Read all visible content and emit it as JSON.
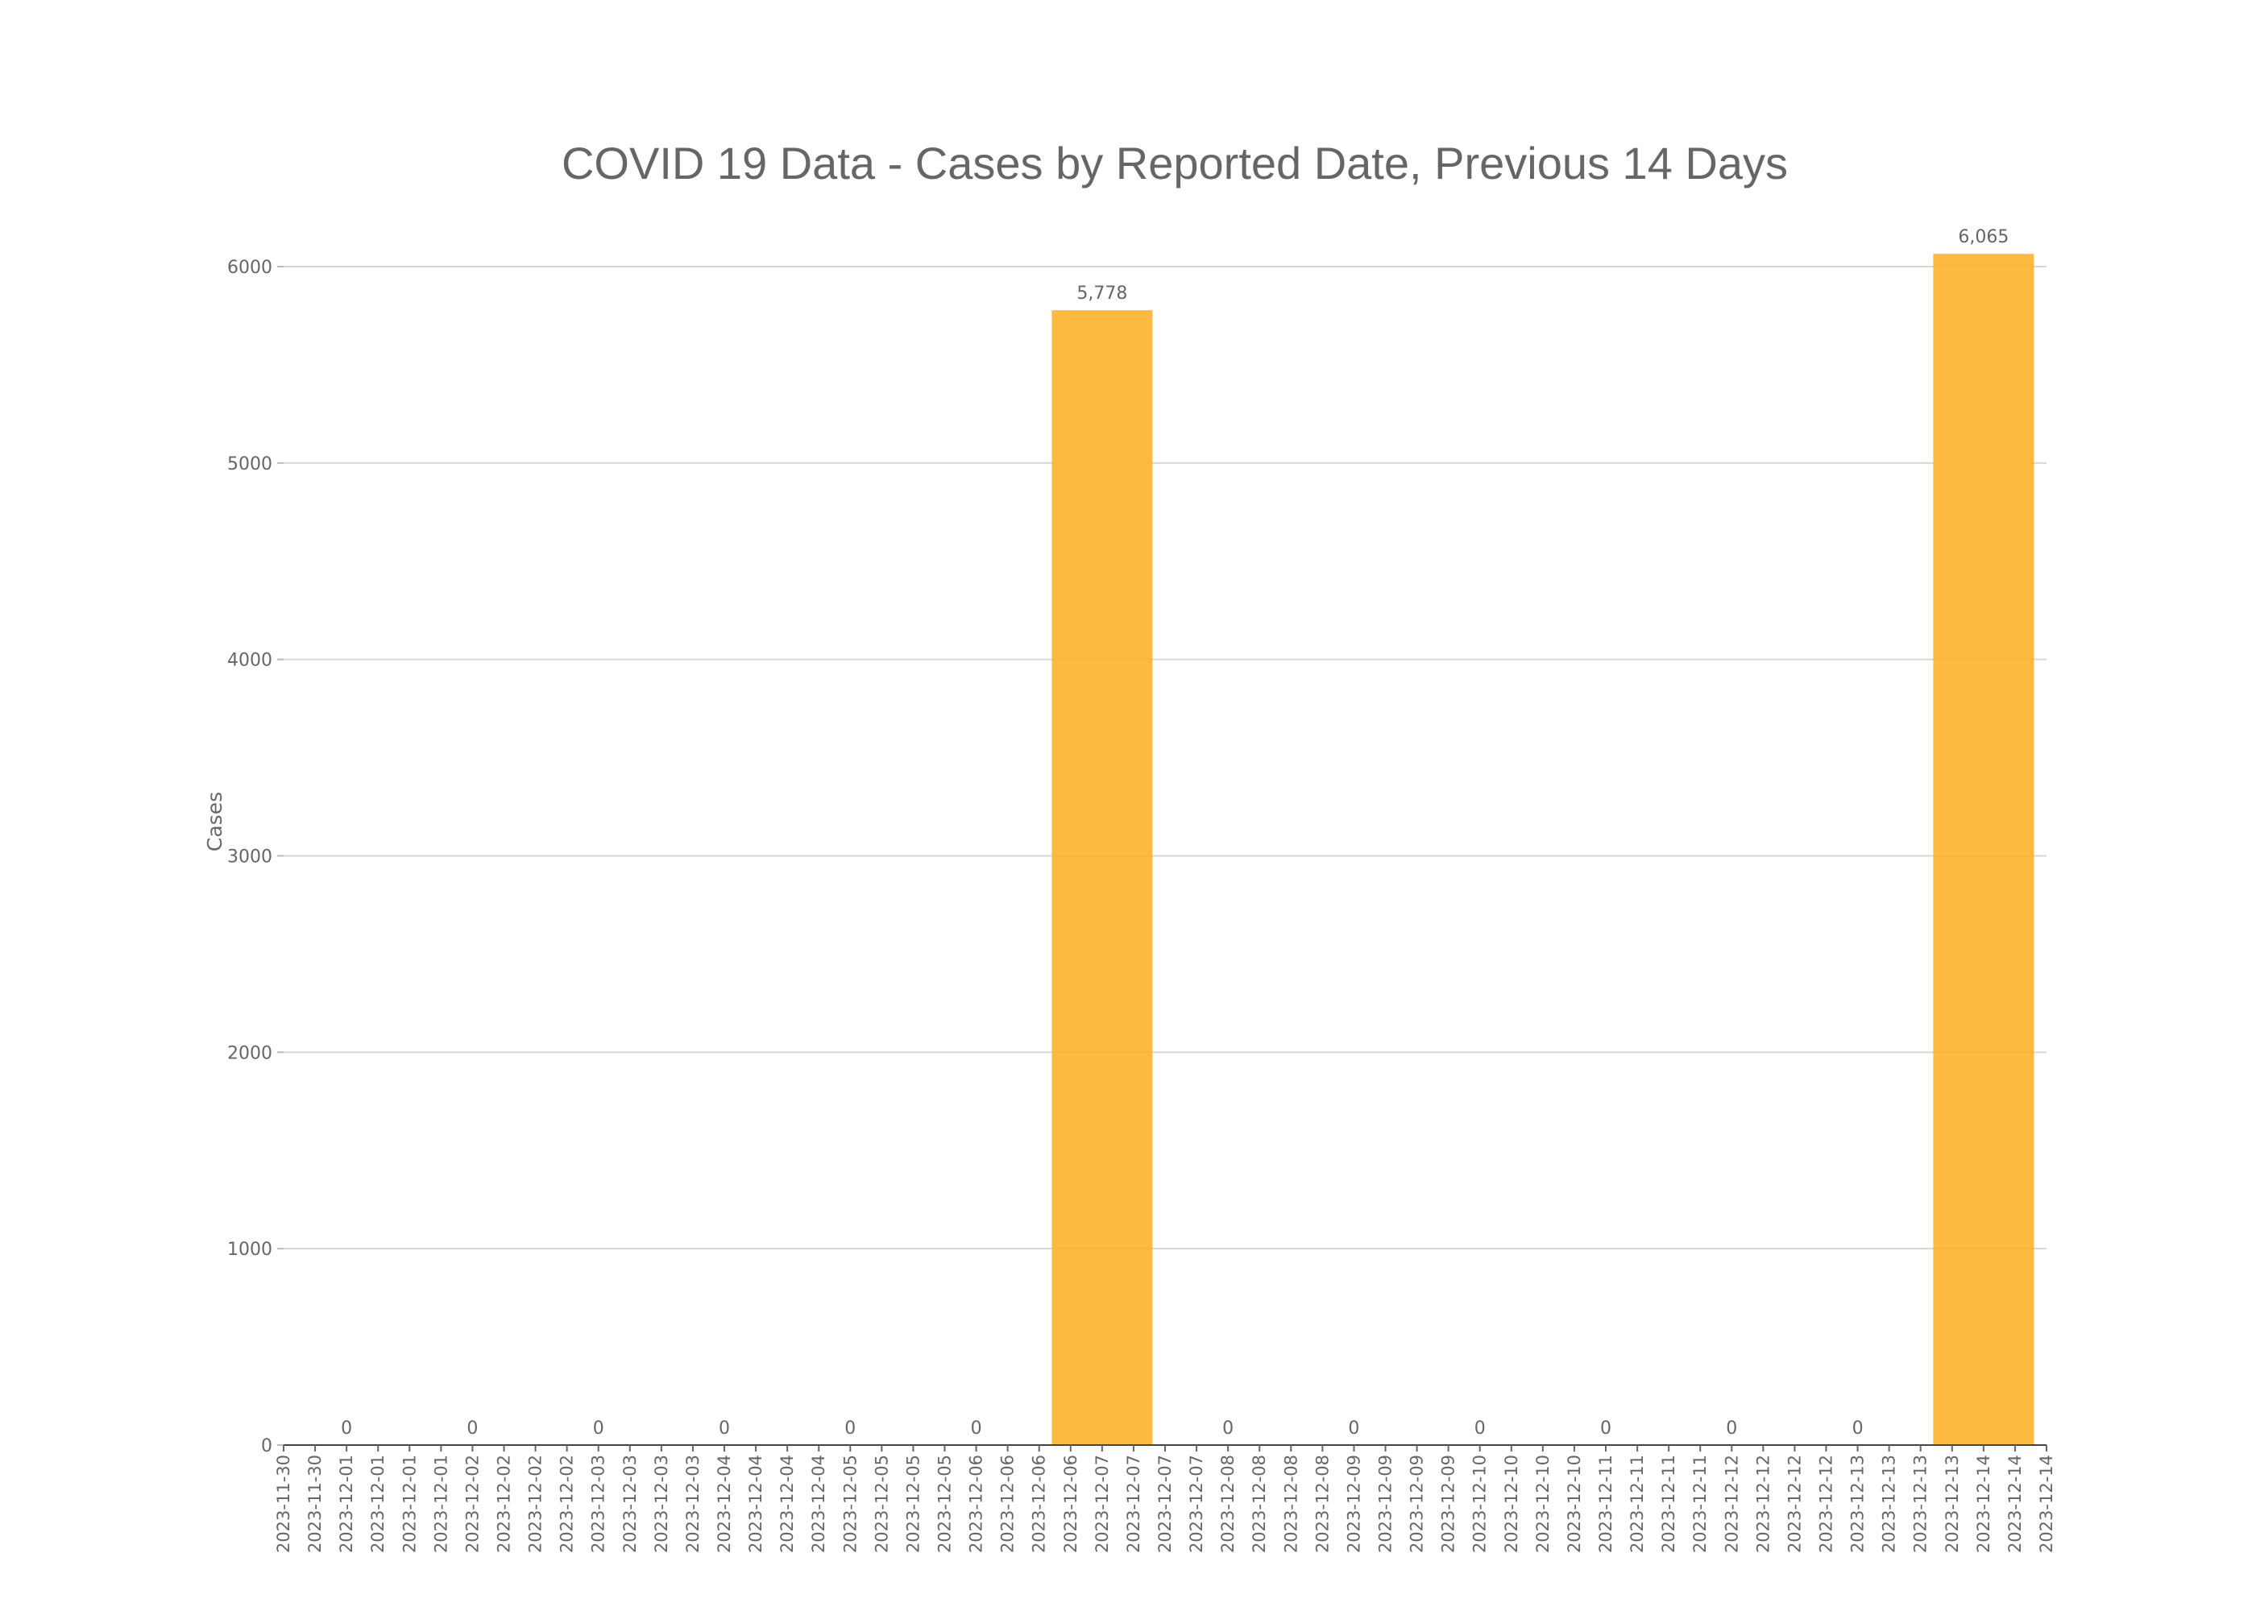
{
  "chart_data": {
    "type": "bar",
    "title": "COVID 19 Data - Cases by Reported Date, Previous 14 Days",
    "xlabel": "",
    "ylabel": "Cases",
    "ylim": [
      0,
      6000
    ],
    "yticks": [
      0,
      1000,
      2000,
      3000,
      4000,
      5000,
      6000
    ],
    "grid": true,
    "bar_color": "#FDB32F",
    "x_tick_labels": [
      "2023-11-30",
      "2023-11-30",
      "2023-12-01",
      "2023-12-01",
      "2023-12-01",
      "2023-12-01",
      "2023-12-02",
      "2023-12-02",
      "2023-12-02",
      "2023-12-02",
      "2023-12-03",
      "2023-12-03",
      "2023-12-03",
      "2023-12-03",
      "2023-12-04",
      "2023-12-04",
      "2023-12-04",
      "2023-12-04",
      "2023-12-05",
      "2023-12-05",
      "2023-12-05",
      "2023-12-05",
      "2023-12-06",
      "2023-12-06",
      "2023-12-06",
      "2023-12-06",
      "2023-12-07",
      "2023-12-07",
      "2023-12-07",
      "2023-12-07",
      "2023-12-08",
      "2023-12-08",
      "2023-12-08",
      "2023-12-08",
      "2023-12-09",
      "2023-12-09",
      "2023-12-09",
      "2023-12-09",
      "2023-12-10",
      "2023-12-10",
      "2023-12-10",
      "2023-12-10",
      "2023-12-11",
      "2023-12-11",
      "2023-12-11",
      "2023-12-11",
      "2023-12-12",
      "2023-12-12",
      "2023-12-12",
      "2023-12-12",
      "2023-12-13",
      "2023-12-13",
      "2023-12-13",
      "2023-12-13",
      "2023-12-14",
      "2023-12-14",
      "2023-12-14"
    ],
    "categories": [
      "2023-12-01",
      "2023-12-02",
      "2023-12-03",
      "2023-12-04",
      "2023-12-05",
      "2023-12-06",
      "2023-12-07",
      "2023-12-08",
      "2023-12-09",
      "2023-12-10",
      "2023-12-11",
      "2023-12-12",
      "2023-12-13",
      "2023-12-14"
    ],
    "values": [
      0,
      0,
      0,
      0,
      0,
      0,
      5778,
      0,
      0,
      0,
      0,
      0,
      0,
      6065
    ],
    "data_labels": [
      "0",
      "0",
      "0",
      "0",
      "0",
      "0",
      "5,778",
      "0",
      "0",
      "0",
      "0",
      "0",
      "0",
      "6,065"
    ]
  }
}
